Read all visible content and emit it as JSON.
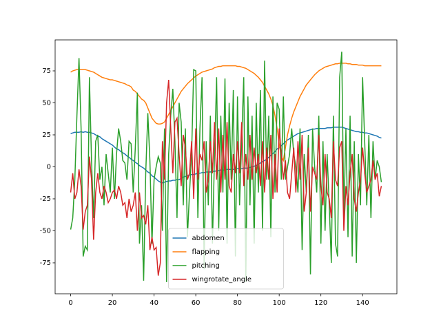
{
  "chart_data": {
    "type": "line",
    "x": [
      0,
      1,
      2,
      3,
      4,
      5,
      6,
      7,
      8,
      9,
      10,
      11,
      12,
      13,
      14,
      15,
      16,
      17,
      18,
      19,
      20,
      21,
      22,
      23,
      24,
      25,
      26,
      27,
      28,
      29,
      30,
      31,
      32,
      33,
      34,
      35,
      36,
      37,
      38,
      39,
      40,
      41,
      42,
      43,
      44,
      45,
      46,
      47,
      48,
      49,
      50,
      51,
      52,
      53,
      54,
      55,
      56,
      57,
      58,
      59,
      60,
      61,
      62,
      63,
      64,
      65,
      66,
      67,
      68,
      69,
      70,
      71,
      72,
      73,
      74,
      75,
      76,
      77,
      78,
      79,
      80,
      81,
      82,
      83,
      84,
      85,
      86,
      87,
      88,
      89,
      90,
      91,
      92,
      93,
      94,
      95,
      96,
      97,
      98,
      99,
      100,
      101,
      102,
      103,
      104,
      105,
      106,
      107,
      108,
      109,
      110,
      111,
      112,
      113,
      114,
      115,
      116,
      117,
      118,
      119,
      120,
      121,
      122,
      123,
      124,
      125,
      126,
      127,
      128,
      129,
      130,
      131,
      132,
      133,
      134,
      135,
      136,
      137,
      138,
      139,
      140,
      141,
      142,
      143,
      144,
      145,
      146,
      147,
      148,
      149
    ],
    "series": [
      {
        "name": "abdomen",
        "color": "#1f77b4",
        "values": [
          26,
          26.5,
          27,
          27,
          27,
          27.5,
          27,
          27.5,
          27,
          27,
          26.5,
          26,
          25,
          24,
          23.5,
          22,
          21,
          20,
          19,
          18,
          17,
          15.5,
          14,
          13.5,
          12,
          11,
          10,
          8.5,
          7.5,
          6,
          5,
          3.5,
          2.5,
          1,
          0,
          -1,
          -2.5,
          -4,
          -5,
          -7,
          -8,
          -9.5,
          -11,
          -12,
          -12.5,
          -12,
          -11.5,
          -11,
          -11,
          -10.5,
          -10.5,
          -10,
          -10,
          -9,
          -8,
          -7.5,
          -7,
          -6.5,
          -6,
          -6,
          -5.5,
          -5,
          -5,
          -4.5,
          -4.5,
          -4,
          -4,
          -4,
          -3.5,
          -3.5,
          -3,
          -3,
          -2.5,
          -2.5,
          -2.5,
          -2,
          -2,
          -2,
          -2,
          -1.5,
          -1.5,
          -1.5,
          -1.5,
          -1,
          -1,
          -1,
          -0.5,
          0,
          0.5,
          1,
          2,
          3,
          4,
          5,
          6,
          7.5,
          9,
          10.5,
          12,
          14,
          15,
          16.5,
          18,
          19.5,
          21,
          22,
          23,
          24,
          25,
          26,
          26.5,
          27,
          27.5,
          28,
          28.5,
          29,
          29.5,
          29.5,
          30,
          30,
          30,
          30,
          30,
          30.5,
          30.5,
          30.5,
          31,
          31,
          31,
          31,
          31,
          30.5,
          30,
          29.5,
          29,
          28.5,
          28,
          27.5,
          27.5,
          27,
          27,
          26.5,
          26.5,
          26,
          25.5,
          25,
          24.5,
          24,
          23,
          22.5
        ]
      },
      {
        "name": "flapping",
        "color": "#ff7f0e",
        "values": [
          74,
          75,
          75.5,
          76,
          76,
          76,
          76,
          76,
          75.5,
          75,
          74.5,
          74,
          73,
          72,
          71,
          70,
          69.5,
          69,
          68.5,
          68,
          68,
          67.5,
          67,
          66.5,
          66,
          65.5,
          65,
          64,
          63.5,
          62.5,
          60,
          59,
          57,
          55,
          53,
          52,
          50,
          46,
          42,
          38,
          36,
          34,
          33.5,
          33.5,
          34,
          35,
          38,
          41,
          44,
          47,
          50,
          53,
          56,
          59,
          61,
          63,
          65,
          66.5,
          68,
          69.5,
          71,
          72,
          73,
          74,
          74.5,
          75,
          75.5,
          76,
          76.5,
          77.5,
          78,
          78.5,
          78.5,
          79,
          79,
          79,
          79,
          79,
          79,
          79,
          78.5,
          78.5,
          78,
          77.5,
          77,
          76,
          75,
          74,
          73,
          71.5,
          70,
          68,
          66,
          63,
          60,
          57,
          53,
          48,
          40,
          30,
          18,
          8,
          5,
          15,
          25,
          32,
          38,
          43,
          47,
          51,
          55,
          58,
          61,
          64,
          66,
          68,
          70,
          72,
          73.5,
          75,
          76,
          77,
          78,
          78.5,
          79,
          79.5,
          80,
          80.5,
          80.5,
          81,
          81,
          81,
          81,
          80.5,
          80.5,
          80,
          80,
          80,
          79.5,
          79.5,
          79.5,
          79,
          79,
          79,
          79,
          79,
          79,
          79,
          79,
          79
        ]
      },
      {
        "name": "pitching",
        "color": "#2ca02c",
        "values": [
          -49,
          -40,
          -10,
          40,
          85,
          30,
          -70,
          -62,
          -65,
          70,
          5,
          -40,
          20,
          25,
          -10,
          0,
          -30,
          10,
          -5,
          -20,
          15,
          -25,
          10,
          30,
          20,
          5,
          3,
          -10,
          20,
          18,
          -20,
          15,
          58,
          -60,
          -30,
          -89,
          -5,
          42,
          5,
          -60,
          -10,
          0,
          8,
          3,
          -50,
          30,
          -90,
          10,
          40,
          61,
          20,
          -40,
          50,
          35,
          -30,
          30,
          -55,
          -20,
          10,
          76,
          75,
          -40,
          30,
          70,
          -80,
          20,
          -30,
          40,
          -60,
          10,
          70,
          -50,
          40,
          -20,
          69,
          -60,
          50,
          -10,
          60,
          -70,
          55,
          -30,
          20,
          70,
          -90,
          55,
          -30,
          40,
          -60,
          50,
          -20,
          60,
          -50,
          83,
          -10,
          40,
          -55,
          55,
          -20,
          50,
          45,
          -10,
          55,
          -10,
          0,
          10,
          30,
          10,
          0,
          -20,
          30,
          -65,
          10,
          -20,
          25,
          -84,
          30,
          0,
          -20,
          40,
          -60,
          20,
          -50,
          10,
          -30,
          -75,
          40,
          -60,
          -70,
          70,
          90,
          -40,
          30,
          -55,
          40,
          -70,
          20,
          -75,
          10,
          -30,
          70,
          20,
          -30,
          25,
          -40,
          20,
          -10,
          5,
          0,
          -12
        ]
      },
      {
        "name": "wingrotate_angle",
        "color": "#d62728",
        "values": [
          -20,
          -5,
          -25,
          -20,
          -2,
          -15,
          -49,
          -35,
          -30,
          8,
          -10,
          -57,
          -20,
          -5,
          -20,
          -25,
          -15,
          -20,
          -28,
          -25,
          -20,
          -18,
          -25,
          -15,
          -20,
          -30,
          -28,
          -40,
          -25,
          -35,
          -30,
          -20,
          -50,
          -20,
          -40,
          -38,
          -45,
          -30,
          -65,
          -55,
          -65,
          -63,
          -85,
          -75,
          20,
          -10,
          50,
          68,
          30,
          -5,
          35,
          38,
          10,
          -15,
          25,
          15,
          -10,
          -5,
          20,
          -25,
          30,
          -10,
          10,
          5,
          20,
          -20,
          -10,
          20,
          -5,
          35,
          -10,
          30,
          -20,
          25,
          -10,
          35,
          -15,
          -20,
          10,
          -5,
          20,
          -5,
          35,
          -15,
          10,
          -10,
          25,
          -10,
          15,
          -5,
          10,
          -15,
          20,
          -20,
          15,
          -10,
          25,
          -25,
          10,
          -20,
          30,
          10,
          -10,
          5,
          -20,
          -25,
          -5,
          15,
          -20,
          20,
          -10,
          25,
          -35,
          -20,
          15,
          -35,
          0,
          -5,
          -10,
          25,
          -15,
          -30,
          10,
          -20,
          -25,
          -40,
          20,
          -10,
          -15,
          15,
          20,
          -50,
          -15,
          -30,
          -5,
          10,
          -25,
          -35,
          -20,
          -10,
          15,
          -5,
          -20,
          -15,
          -10,
          5,
          -10,
          -5,
          -23,
          -15
        ]
      }
    ],
    "xlim": [
      -7.45,
      156.45
    ],
    "xticks": [
      0,
      20,
      40,
      60,
      80,
      100,
      120,
      140
    ],
    "ylim": [
      -99.2,
      99.2
    ],
    "yticks": [
      -75,
      -50,
      -25,
      0,
      25,
      50,
      75
    ],
    "legend": "lower center"
  }
}
